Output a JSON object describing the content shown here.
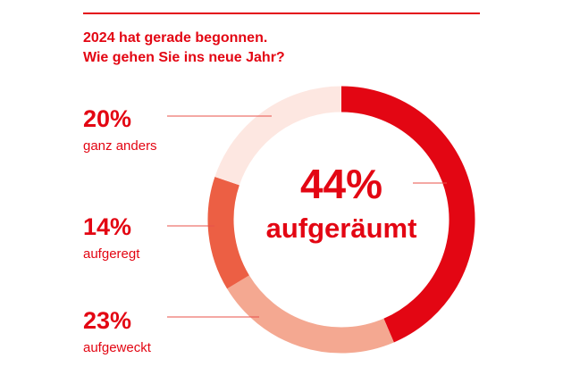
{
  "chart_data": {
    "type": "donut",
    "title": [
      "2024 hat gerade begonnen.",
      "Wie gehen Sie ins neue Jahr?"
    ],
    "categories": [
      "aufgeräumt",
      "aufgeweckt",
      "aufgeregt",
      "ganz anders"
    ],
    "values": [
      44,
      23,
      14,
      20
    ],
    "value_labels": [
      "44%",
      "23%",
      "14%",
      "20%"
    ],
    "colors": [
      "#e30613",
      "#f4a891",
      "#ec5f44",
      "#fde7e1"
    ]
  }
}
